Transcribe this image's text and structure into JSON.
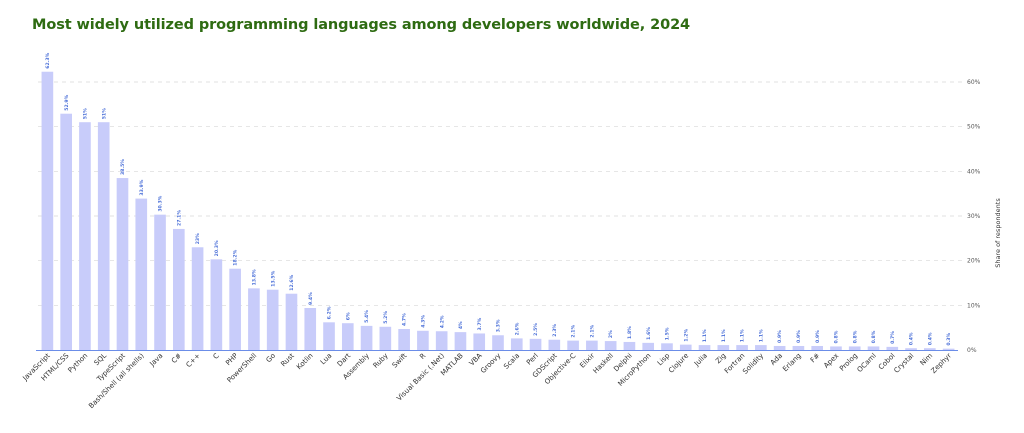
{
  "chart_data": {
    "type": "bar",
    "title": "Most widely utilized programming languages among developers worldwide, 2024",
    "xlabel": "",
    "ylabel": "Share of respondents",
    "ylim": [
      0,
      65
    ],
    "yticks": [
      "0%",
      "10%",
      "20%",
      "30%",
      "40%",
      "50%",
      "60%"
    ],
    "ytick_values": [
      0,
      10,
      20,
      30,
      40,
      50,
      60
    ],
    "grid": true,
    "y_axis_side": "right",
    "colors": {
      "bar": "#c8ccfa",
      "label": "#4a6fd8",
      "axis": "#6b8de8",
      "title": "#2e6b12",
      "grid": "#d6d6d6"
    },
    "categories": [
      "JavaScript",
      "HTML/CSS",
      "Python",
      "SQL",
      "TypeScript",
      "Bash/Shell (all shells)",
      "Java",
      "C#",
      "C++",
      "C",
      "PHP",
      "PowerShell",
      "Go",
      "Rust",
      "Kotlin",
      "Lua",
      "Dart",
      "Assembly",
      "Ruby",
      "Swift",
      "R",
      "Visual Basic (.Net)",
      "MATLAB",
      "VBA",
      "Groovy",
      "Scala",
      "Perl",
      "GDScript",
      "Objective-C",
      "Elixir",
      "Haskell",
      "Delphi",
      "MicroPython",
      "Lisp",
      "Clojure",
      "Julia",
      "Zig",
      "Fortran",
      "Solidity",
      "Ada",
      "Erlang",
      "F#",
      "Apex",
      "Prolog",
      "OCaml",
      "Cobol",
      "Crystal",
      "Nim",
      "Zephyr"
    ],
    "values": [
      62.3,
      52.9,
      51,
      51,
      38.5,
      33.9,
      30.3,
      27.1,
      23,
      20.3,
      18.2,
      13.8,
      13.5,
      12.6,
      9.4,
      6.2,
      6,
      5.4,
      5.2,
      4.7,
      4.3,
      4.2,
      4,
      3.7,
      3.3,
      2.6,
      2.5,
      2.3,
      2.1,
      2.1,
      2,
      1.8,
      1.6,
      1.5,
      1.2,
      1.1,
      1.1,
      1.1,
      1.1,
      0.9,
      0.9,
      0.9,
      0.8,
      0.8,
      0.8,
      0.7,
      0.4,
      0.4,
      0.3
    ],
    "labels": [
      "62.3%",
      "52.9%",
      "51%",
      "51%",
      "38.5%",
      "33.9%",
      "30.3%",
      "27.1%",
      "23%",
      "20.3%",
      "18.2%",
      "13.8%",
      "13.5%",
      "12.6%",
      "9.4%",
      "6.2%",
      "6%",
      "5.4%",
      "5.2%",
      "4.7%",
      "4.3%",
      "4.2%",
      "4%",
      "3.7%",
      "3.3%",
      "2.6%",
      "2.5%",
      "2.3%",
      "2.1%",
      "2.1%",
      "2%",
      "1.8%",
      "1.6%",
      "1.5%",
      "1.2%",
      "1.1%",
      "1.1%",
      "1.1%",
      "1.1%",
      "0.9%",
      "0.9%",
      "0.9%",
      "0.8%",
      "0.8%",
      "0.8%",
      "0.7%",
      "0.4%",
      "0.4%",
      "0.3%"
    ]
  }
}
